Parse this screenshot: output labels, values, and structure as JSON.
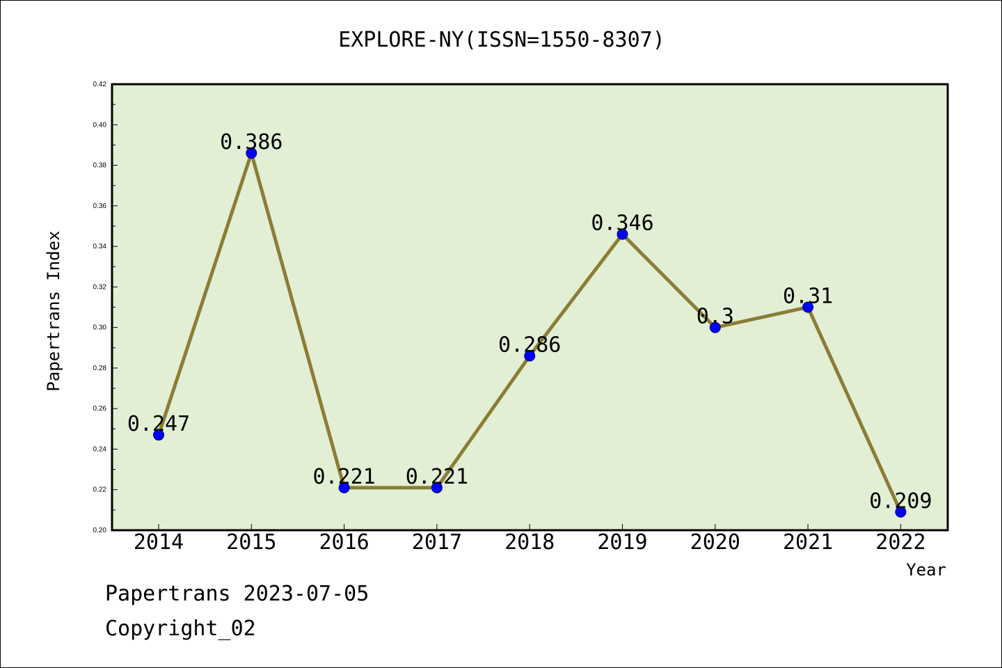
{
  "chart_data": {
    "type": "line",
    "title": "EXPLORE-NY(ISSN=1550-8307)",
    "xlabel": "Year",
    "ylabel": "Papertrans Index",
    "categories": [
      "2014",
      "2015",
      "2016",
      "2017",
      "2018",
      "2019",
      "2020",
      "2021",
      "2022"
    ],
    "values": [
      0.247,
      0.386,
      0.221,
      0.221,
      0.286,
      0.346,
      0.3,
      0.31,
      0.209
    ],
    "value_labels": [
      "0.247",
      "0.386",
      "0.221",
      "0.221",
      "0.286",
      "0.346",
      "0.3",
      "0.31",
      "0.209"
    ],
    "ylim": [
      0.2,
      0.42
    ],
    "yticks": [
      "0.20",
      "0.22",
      "0.24",
      "0.26",
      "0.28",
      "0.30",
      "0.32",
      "0.34",
      "0.36",
      "0.38",
      "0.40",
      "0.42"
    ],
    "grid": false,
    "colors": {
      "plot_background": "#e2efd4",
      "line": "#8b7d37",
      "marker": "#0000ff"
    }
  },
  "footer": {
    "date_text": "Papertrans 2023-07-05",
    "copyright_text": "Copyright_02"
  }
}
